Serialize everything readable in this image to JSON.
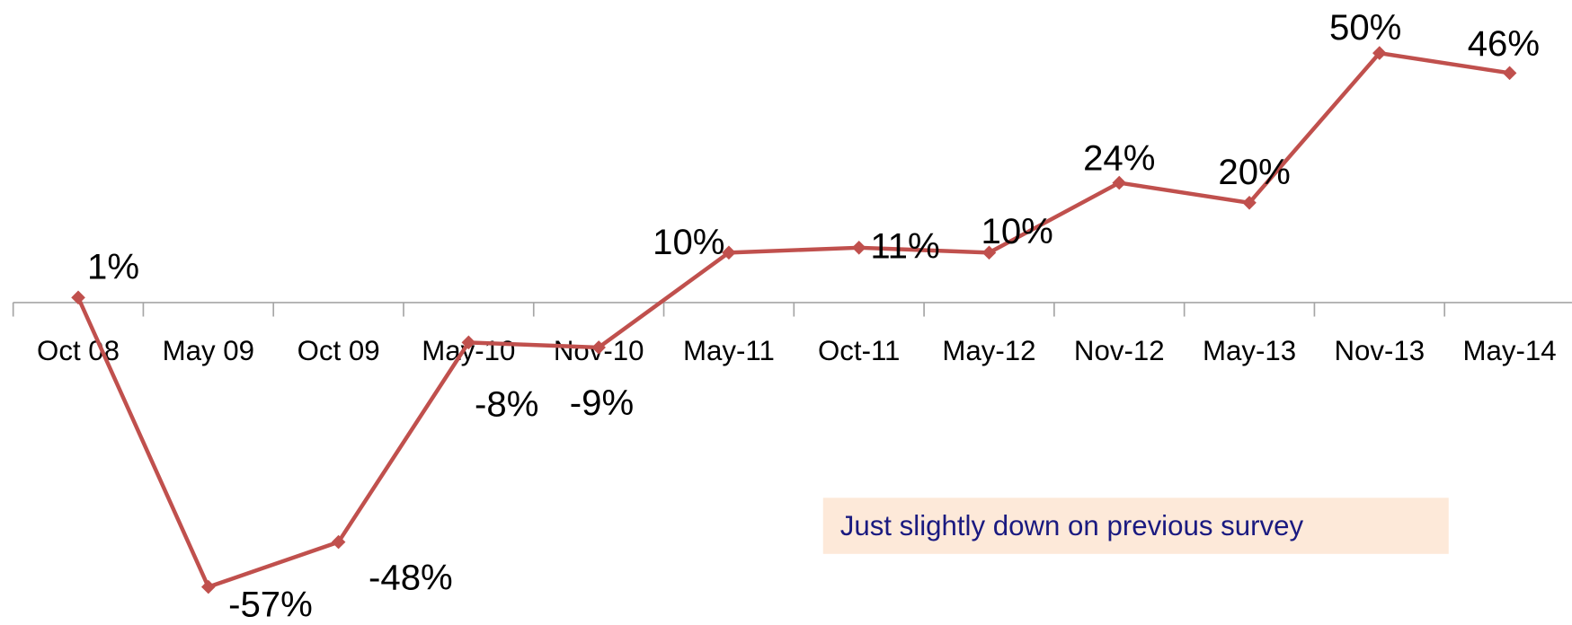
{
  "chart_data": {
    "type": "line",
    "categories": [
      "Oct 08",
      "May 09",
      "Oct 09",
      "May-10",
      "Nov-10",
      "May-11",
      "Oct-11",
      "May-12",
      "Nov-12",
      "May-13",
      "Nov-13",
      "May-14"
    ],
    "series": [
      {
        "name": null,
        "color": "#c0504d",
        "values": [
          1,
          -57,
          -48,
          -8,
          -9,
          10,
          11,
          10,
          24,
          20,
          50,
          46
        ],
        "value_labels": [
          "1%",
          "-57%",
          "-48%",
          "-8%",
          "-9%",
          "10%",
          "11%",
          "10%",
          "24%",
          "20%",
          "50%",
          "46%"
        ]
      }
    ],
    "annotation": "Just slightly down on previous survey"
  }
}
